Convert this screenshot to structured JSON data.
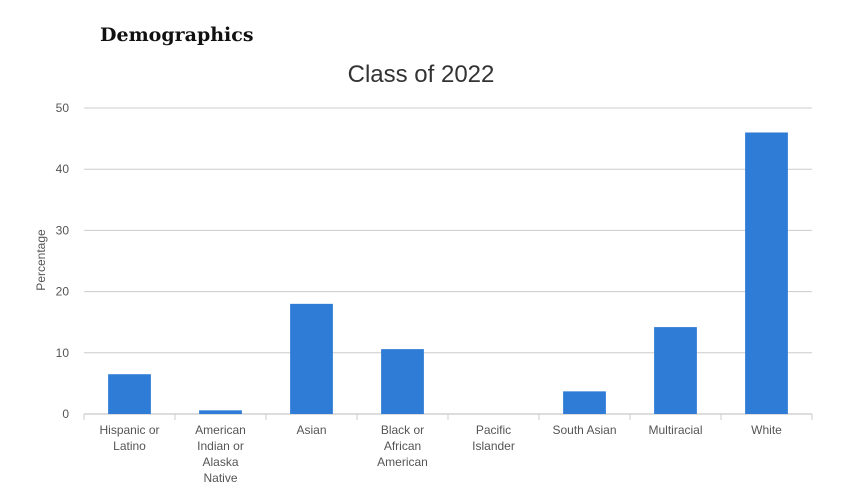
{
  "page": {
    "heading": "Demographics"
  },
  "chart_data": {
    "type": "bar",
    "title": "Class of 2022",
    "xlabel": "",
    "ylabel": "Percentage",
    "ylim": [
      0,
      50
    ],
    "yticks": [
      0,
      10,
      20,
      30,
      40,
      50
    ],
    "grid": true,
    "bar_color": "#2e7cd6",
    "categories": [
      [
        "Hispanic or",
        "Latino"
      ],
      [
        "American",
        "Indian or",
        "Alaska",
        "Native"
      ],
      [
        "Asian"
      ],
      [
        "Black or",
        "African",
        "American"
      ],
      [
        "Pacific",
        "Islander"
      ],
      [
        "South Asian"
      ],
      [
        "Multiracial"
      ],
      [
        "White"
      ]
    ],
    "values": [
      6.5,
      0.6,
      18,
      10.6,
      0,
      3.7,
      14.2,
      46
    ]
  }
}
